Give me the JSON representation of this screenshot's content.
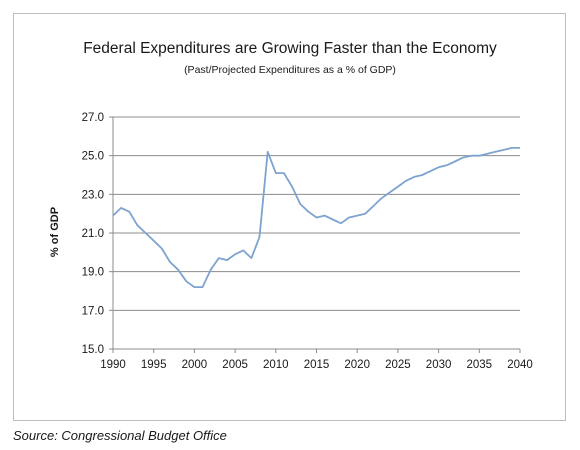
{
  "chart_data": {
    "type": "line",
    "title": "Federal Expenditures are Growing Faster than the Economy",
    "subtitle": "(Past/Projected Expenditures as a % of GDP)",
    "xlabel": "",
    "ylabel": "% of GDP",
    "xlim": [
      1990,
      2040
    ],
    "ylim": [
      15.0,
      27.0
    ],
    "x_ticks": [
      "1990",
      "1995",
      "2000",
      "2005",
      "2010",
      "2015",
      "2020",
      "2025",
      "2030",
      "2035",
      "2040"
    ],
    "y_ticks": [
      "15.0",
      "17.0",
      "19.0",
      "21.0",
      "23.0",
      "25.0",
      "27.0"
    ],
    "grid": "horizontal",
    "legend": "none",
    "line_color": "#7ea3cf",
    "series": [
      {
        "x": [
          1990,
          1991,
          1992,
          1993,
          1994,
          1995,
          1996,
          1997,
          1998,
          1999,
          2000,
          2001,
          2002,
          2003,
          2004,
          2005,
          2006,
          2007,
          2008,
          2009,
          2010,
          2011,
          2012,
          2013,
          2014,
          2015,
          2016,
          2017,
          2018,
          2019,
          2020,
          2021,
          2022,
          2023,
          2024,
          2025,
          2026,
          2027,
          2028,
          2029,
          2030,
          2031,
          2032,
          2033,
          2034,
          2035,
          2036,
          2037,
          2038,
          2039,
          2040
        ],
        "values": [
          21.9,
          22.3,
          22.1,
          21.4,
          21.0,
          20.6,
          20.2,
          19.5,
          19.1,
          18.5,
          18.2,
          18.2,
          19.1,
          19.7,
          19.6,
          19.9,
          20.1,
          19.7,
          20.8,
          25.2,
          24.1,
          24.1,
          23.4,
          22.5,
          22.1,
          21.8,
          21.9,
          21.7,
          21.5,
          21.8,
          21.9,
          22.0,
          22.4,
          22.8,
          23.1,
          23.4,
          23.7,
          23.9,
          24.0,
          24.2,
          24.4,
          24.5,
          24.7,
          24.9,
          25.0,
          25.0,
          25.1,
          25.2,
          25.3,
          25.4,
          25.4
        ]
      }
    ]
  },
  "source": "Source: Congressional Budget Office"
}
